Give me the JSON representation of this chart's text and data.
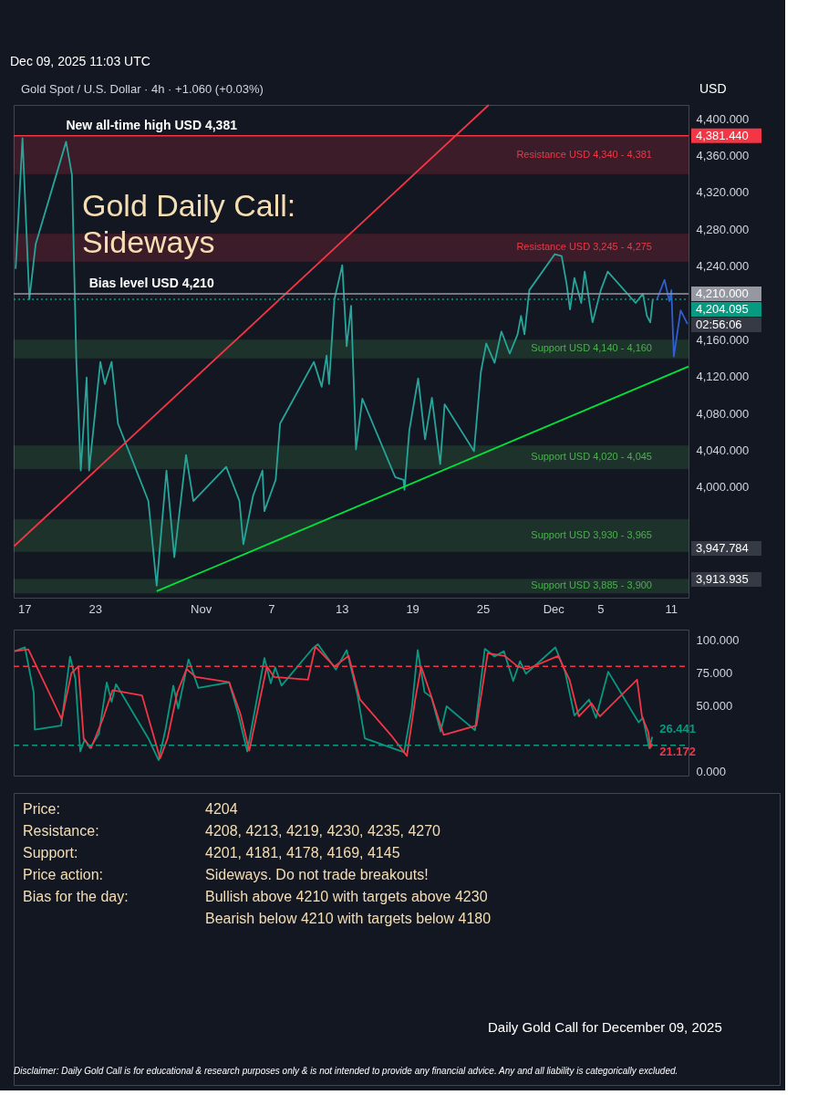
{
  "chart_data": [
    {
      "type": "line",
      "title": "Gold Daily Call: Sideways",
      "subtitle": "Gold Spot / U.S. Dollar · 4h · +1.060 (+0.03%)",
      "ylabel": "USD",
      "xlim": [
        "2025-10-16T02:00",
        "2025-12-12T12:00"
      ],
      "ylim": [
        3880,
        4415
      ],
      "xticks": [
        {
          "value": "2025-10-17",
          "label": "17"
        },
        {
          "value": "2025-10-23",
          "label": "23"
        },
        {
          "value": "2025-11-01",
          "label": "Nov"
        },
        {
          "value": "2025-11-07",
          "label": "7"
        },
        {
          "value": "2025-11-13",
          "label": "13"
        },
        {
          "value": "2025-11-19",
          "label": "19"
        },
        {
          "value": "2025-11-25",
          "label": "25"
        },
        {
          "value": "2025-12-01",
          "label": "Dec"
        },
        {
          "value": "2025-12-05",
          "label": "5"
        },
        {
          "value": "2025-12-11",
          "label": "11"
        }
      ],
      "yticks": [
        {
          "value": 4000,
          "label": "4,000.000"
        },
        {
          "value": 4040,
          "label": "4,040.000"
        },
        {
          "value": 4080,
          "label": "4,080.000"
        },
        {
          "value": 4120,
          "label": "4,120.000"
        },
        {
          "value": 4160,
          "label": "4,160.000"
        },
        {
          "value": 4240,
          "label": "4,240.000"
        },
        {
          "value": 4280,
          "label": "4,280.000"
        },
        {
          "value": 4320,
          "label": "4,320.000"
        },
        {
          "value": 4360,
          "label": "4,360.000"
        },
        {
          "value": 4400,
          "label": "4,400.000"
        }
      ],
      "grid": false,
      "series": [
        {
          "color": "#26a69a",
          "x": [
            "2025-10-16T06:00",
            "2025-10-16T20:00",
            "2025-10-17T10:00",
            "2025-10-17T23:00",
            "2025-10-20T13:00",
            "2025-10-21T01:00",
            "2025-10-21T10:00",
            "2025-10-21T19:00",
            "2025-10-22T07:00",
            "2025-10-22T12:00",
            "2025-10-23T11:00",
            "2025-10-23T20:00",
            "2025-10-24T10:00",
            "2025-10-24T23:00",
            "2025-10-27T13:00",
            "2025-10-28T06:00",
            "2025-10-29T02:00",
            "2025-10-29T18:00",
            "2025-10-30T18:00",
            "2025-10-31T09:00",
            "2025-11-03T04:00",
            "2025-11-04T07:00",
            "2025-11-04T15:00",
            "2025-11-05T11:00",
            "2025-11-06T06:00",
            "2025-11-06T10:00",
            "2025-11-07T09:00",
            "2025-11-07T18:00",
            "2025-11-10T15:00",
            "2025-11-11T07:00",
            "2025-11-11T17:00",
            "2025-11-11T22:00",
            "2025-11-12T09:00",
            "2025-11-13T01:00",
            "2025-11-13T10:00",
            "2025-11-13T19:00",
            "2025-11-14T05:00",
            "2025-11-14T18:00",
            "2025-11-17T13:00",
            "2025-11-18T06:00",
            "2025-11-18T08:00",
            "2025-11-18T18:00",
            "2025-11-19T12:00",
            "2025-11-20T02:00",
            "2025-11-20T16:00",
            "2025-11-21T09:00",
            "2025-11-21T18:00",
            "2025-11-24T06:00",
            "2025-11-24T20:00",
            "2025-11-25T07:00",
            "2025-11-26T00:00",
            "2025-11-26T14:00",
            "2025-11-27T07:00",
            "2025-11-27T23:00",
            "2025-11-28T06:00",
            "2025-11-28T13:00",
            "2025-11-28T23:00",
            "2025-12-01T03:00",
            "2025-12-01T17:00",
            "2025-12-02T03:00",
            "2025-12-02T10:00",
            "2025-12-02T19:00",
            "2025-12-03T09:00",
            "2025-12-03T16:00",
            "2025-12-04T08:00",
            "2025-12-05T01:00",
            "2025-12-05T15:00",
            "2025-12-08T00:00",
            "2025-12-08T15:00",
            "2025-12-08T23:00",
            "2025-12-09T06:00",
            "2025-12-09T11:00"
          ],
          "values": [
            4237,
            4379,
            4204,
            4264,
            4375,
            4339,
            4136,
            4018,
            4119,
            4018,
            4136,
            4112,
            4136,
            4069,
            3985,
            3893,
            4018,
            3924,
            4035,
            3985,
            4022,
            3985,
            3938,
            3991,
            4018,
            3974,
            4008,
            4069,
            4136,
            4109,
            4143,
            4112,
            4204,
            4241,
            4153,
            4197,
            4041,
            4096,
            4011,
            4008,
            3997,
            4062,
            4118,
            4052,
            4097,
            4025,
            4090,
            4039,
            4125,
            4156,
            4135,
            4169,
            4145,
            4166,
            4186,
            4166,
            4214,
            4253,
            4251,
            4221,
            4193,
            4227,
            4200,
            4234,
            4179,
            4214,
            4234,
            4200,
            4210,
            4186,
            4179,
            4204
          ]
        },
        {
          "color": "#00e23c",
          "x": [
            "2025-10-28T06:00",
            "2025-12-12T12:00"
          ],
          "values": [
            3887,
            4131
          ]
        },
        {
          "color": "#f23645",
          "x": [
            "2025-10-16T03:00",
            "2025-11-25T12:00"
          ],
          "values": [
            3936,
            4415
          ]
        },
        {
          "color": "#2f5fd0",
          "x": [
            "2025-12-09T19:00",
            "2025-12-10T11:00",
            "2025-12-10T21:00",
            "2025-12-11T01:00",
            "2025-12-11T06:00",
            "2025-12-11T20:00",
            "2025-12-12T10:00"
          ],
          "values": [
            4203,
            4225,
            4202,
            4214,
            4142,
            4192,
            4177
          ]
        }
      ],
      "bands": [
        {
          "axis": "y",
          "from": 4340,
          "to": 4381,
          "label": "Resistance USD 4,340 - 4,381",
          "color": "#f23645"
        },
        {
          "axis": "y",
          "from": 4245,
          "to": 4275,
          "label": "Resistance USD 3,245 - 4,275",
          "color": "#f23645"
        },
        {
          "axis": "y",
          "from": 4140,
          "to": 4160,
          "label": "Support USD 4,140 - 4,160",
          "color": "#4caf50"
        },
        {
          "axis": "y",
          "from": 4020,
          "to": 4045,
          "label": "Support USD 4,020 - 4,045",
          "color": "#4caf50"
        },
        {
          "axis": "y",
          "from": 3930,
          "to": 3965,
          "label": "Support USD 3,930 - 3,965",
          "color": "#4caf50"
        },
        {
          "axis": "y",
          "from": 3885,
          "to": 3900,
          "label": "Support USD 3,885 - 3,900",
          "color": "#4caf50"
        }
      ],
      "ref_lines": [
        {
          "axis": "y",
          "value": 4381.44,
          "label": "4,381.440",
          "color": "#f23645",
          "line_style": "solid"
        },
        {
          "axis": "y",
          "value": 4210,
          "label": "4,210.000",
          "color": "#9598a1",
          "line_style": "solid"
        },
        {
          "axis": "y",
          "value": 4204.095,
          "label": "4,204.095",
          "color": "#089981",
          "line_style": "dotted"
        }
      ],
      "annotations": [
        "Dec 09, 2025 11:03 UTC",
        {
          "text": "New all-time high USD 4,381",
          "x": "2025-10-20T13:00",
          "y": 4381.44
        },
        {
          "text": "Bias level USD 4,210",
          "x": "2025-10-22T12:00",
          "y": 4210
        },
        "02:56:06",
        "3,947.784",
        "3,913.935"
      ]
    },
    {
      "type": "line",
      "tick_labels": "y",
      "xlim": [
        "2025-10-16T02:00",
        "2025-12-12T12:00"
      ],
      "ylim": [
        -3,
        108
      ],
      "yticks": [
        {
          "value": 0,
          "label": "0.000"
        },
        {
          "value": 50,
          "label": "50.000"
        },
        {
          "value": 75,
          "label": "75.000"
        },
        {
          "value": 100,
          "label": "100.000"
        }
      ],
      "grid": false,
      "series": [
        {
          "color": "#089981",
          "x": [
            "2025-10-16T04:00",
            "2025-10-17T01:00",
            "2025-10-17T19:00",
            "2025-10-17T21:00",
            "2025-10-20T03:00",
            "2025-10-20T21:00",
            "2025-10-21T08:00",
            "2025-10-21T18:00",
            "2025-10-22T03:00",
            "2025-10-22T14:00",
            "2025-10-23T08:00",
            "2025-10-24T00:00",
            "2025-10-24T10:00",
            "2025-10-24T19:00",
            "2025-10-27T13:00",
            "2025-10-28T10:00",
            "2025-10-29T00:00",
            "2025-10-29T16:00",
            "2025-10-30T02:00",
            "2025-10-30T23:00",
            "2025-10-31T19:00",
            "2025-11-03T10:00",
            "2025-11-04T04:00",
            "2025-11-04T23:00",
            "2025-11-06T10:00",
            "2025-11-06T23:00",
            "2025-11-07T08:00",
            "2025-11-07T21:00",
            "2025-11-10T12:00",
            "2025-11-10T23:00",
            "2025-11-12T12:00",
            "2025-11-13T10:00",
            "2025-11-14T08:00",
            "2025-11-14T23:00",
            "2025-11-18T07:00",
            "2025-11-18T23:00",
            "2025-11-19T11:00",
            "2025-11-20T01:00",
            "2025-11-20T15:00",
            "2025-11-21T10:00",
            "2025-11-21T22:00",
            "2025-11-24T08:00",
            "2025-11-25T04:00",
            "2025-11-26T00:00",
            "2025-11-26T19:00",
            "2025-11-27T14:00",
            "2025-11-28T04:00",
            "2025-11-28T16:00",
            "2025-12-01T04:00",
            "2025-12-02T00:00",
            "2025-12-02T19:00",
            "2025-12-04T01:00",
            "2025-12-04T15:00",
            "2025-12-05T16:00",
            "2025-12-08T06:00",
            "2025-12-08T15:00",
            "2025-12-09T04:00",
            "2025-12-09T10:00"
          ],
          "values": [
            91.6,
            94.5,
            60,
            32,
            35,
            87.5,
            70.7,
            15.4,
            24.5,
            18,
            28.7,
            67.9,
            53.2,
            66.5,
            25.3,
            8.8,
            32,
            65.4,
            48,
            85.4,
            63.7,
            67.9,
            44.5,
            15.4,
            86.4,
            67.2,
            79.4,
            65.4,
            93.4,
            97,
            77.7,
            92.4,
            58.5,
            25.3,
            14.8,
            48,
            92.4,
            60.4,
            56.7,
            30.5,
            49.7,
            31.5,
            93.4,
            87.5,
            91.6,
            69,
            84,
            74.4,
            94.5,
            76,
            42.7,
            54.9,
            40.9,
            76,
            37.5,
            40.9,
            17.7,
            26.441
          ],
          "value_labels": [
            null,
            null,
            null,
            null,
            null,
            null,
            null,
            null,
            null,
            null,
            null,
            null,
            null,
            null,
            null,
            null,
            null,
            null,
            null,
            null,
            null,
            null,
            null,
            null,
            null,
            null,
            null,
            null,
            null,
            null,
            null,
            null,
            null,
            null,
            null,
            null,
            null,
            null,
            null,
            null,
            null,
            null,
            null,
            null,
            null,
            null,
            null,
            null,
            null,
            null,
            null,
            null,
            null,
            null,
            null,
            null,
            null,
            "26.441"
          ]
        },
        {
          "color": "#f23645",
          "x": [
            "2025-10-16T04:00",
            "2025-10-17T08:00",
            "2025-10-20T04:00",
            "2025-10-21T00:00",
            "2025-10-21T14:00",
            "2025-10-22T01:00",
            "2025-10-22T16:00",
            "2025-10-23T16:00",
            "2025-10-24T12:00",
            "2025-10-27T00:00",
            "2025-10-27T20:00",
            "2025-10-28T13:00",
            "2025-10-29T04:00",
            "2025-10-30T00:00",
            "2025-10-30T19:00",
            "2025-10-31T14:00",
            "2025-11-03T10:00",
            "2025-11-04T09:00",
            "2025-11-05T03:00",
            "2025-11-06T15:00",
            "2025-11-07T06:00",
            "2025-11-10T03:00",
            "2025-11-10T18:00",
            "2025-11-12T09:00",
            "2025-11-13T14:00",
            "2025-11-14T13:00",
            "2025-11-17T04:00",
            "2025-11-18T13:00",
            "2025-11-19T06:00",
            "2025-11-19T18:00",
            "2025-11-20T14:00",
            "2025-11-21T16:00",
            "2025-11-24T11:00",
            "2025-11-25T10:00",
            "2025-11-26T21:00",
            "2025-11-27T23:00",
            "2025-11-28T18:00",
            "2025-12-01T10:00",
            "2025-12-02T09:00",
            "2025-12-03T04:00",
            "2025-12-04T06:00",
            "2025-12-04T23:00",
            "2025-12-08T03:00",
            "2025-12-08T13:00",
            "2025-12-09T02:00",
            "2025-12-09T06:00",
            "2025-12-09T10:00"
          ],
          "values": [
            91.6,
            93,
            40,
            75,
            80,
            25,
            18,
            40,
            62,
            58,
            32,
            10,
            25,
            60,
            78,
            72,
            68,
            44,
            16,
            80,
            72,
            70,
            95,
            80,
            88,
            55,
            28,
            12,
            55,
            80,
            58,
            28,
            35,
            90,
            88,
            80,
            78,
            88,
            70,
            42,
            52,
            42,
            70,
            42,
            30,
            18,
            21.172
          ],
          "value_labels": [
            null,
            null,
            null,
            null,
            null,
            null,
            null,
            null,
            null,
            null,
            null,
            null,
            null,
            null,
            null,
            null,
            null,
            null,
            null,
            null,
            null,
            null,
            null,
            null,
            null,
            null,
            null,
            null,
            null,
            null,
            null,
            null,
            null,
            null,
            null,
            null,
            null,
            null,
            null,
            null,
            null,
            null,
            null,
            null,
            null,
            null,
            "21.172"
          ]
        }
      ],
      "ref_lines": [
        {
          "axis": "y",
          "value": 80,
          "color": "#f23645",
          "line_style": "dashed"
        },
        {
          "axis": "y",
          "value": 20,
          "color": "#089981",
          "line_style": "dashed"
        }
      ]
    },
    {
      "type": "other",
      "annotations": [
        "Price:",
        "4204",
        "Resistance:",
        "4208, 4213, 4219, 4230, 4235, 4270",
        "Support:",
        "4201, 4181, 4178, 4169, 4145",
        "Price action:",
        "Sideways. Do not trade breakouts!",
        "Bias for the day:",
        "Bullish above 4210 with targets above 4230",
        "Bearish below 4210 with targets below 4180",
        "Daily Gold Call for December 09, 2025",
        "Disclaimer: Daily Gold Call is for educational & research purposes only & is not intended to provide any financial advice. Any and all liability is categorically excluded."
      ]
    }
  ]
}
